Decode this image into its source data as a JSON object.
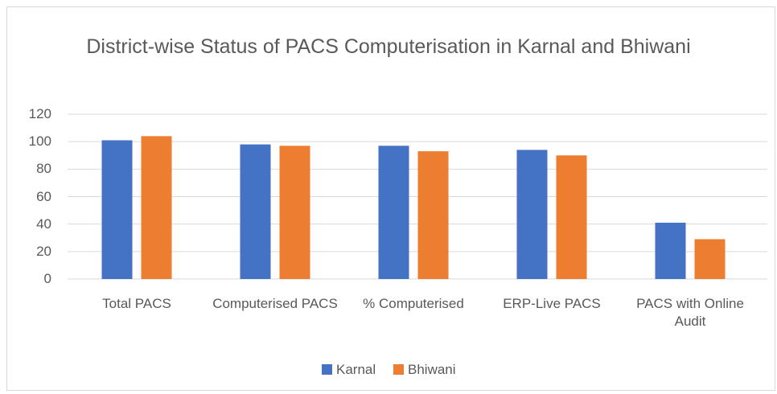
{
  "chart_data": {
    "type": "bar",
    "title": "District-wise Status of PACS Computerisation in Karnal and Bhiwani",
    "categories": [
      "Total PACS",
      "Computerised PACS",
      "% Computerised",
      "ERP-Live PACS",
      "PACS with Online Audit"
    ],
    "series": [
      {
        "name": "Karnal",
        "color": "#4472c4",
        "values": [
          101,
          98,
          97,
          94,
          41
        ]
      },
      {
        "name": "Bhiwani",
        "color": "#ed7d31",
        "values": [
          104,
          97,
          93,
          90,
          29
        ]
      }
    ],
    "ylim": [
      0,
      120
    ],
    "yticks": [
      0,
      20,
      40,
      60,
      80,
      100,
      120
    ],
    "grid": true,
    "legend": "bottom"
  }
}
